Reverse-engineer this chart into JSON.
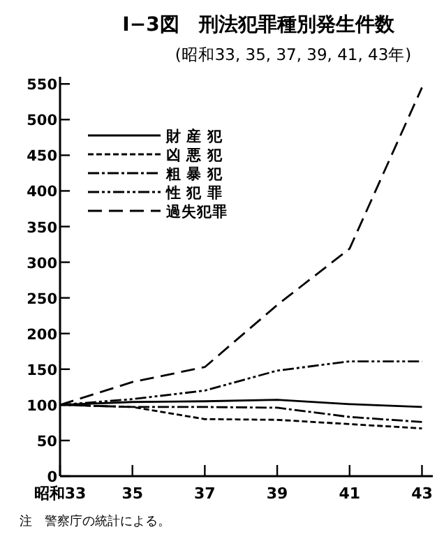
{
  "chart_data": {
    "type": "line",
    "title": "I−3図　刑法犯罪種別発生件数",
    "subtitle": "(昭和33, 35, 37, 39, 41, 43年)",
    "x": [
      33,
      35,
      37,
      39,
      41,
      43
    ],
    "xlim": [
      33,
      43.3
    ],
    "xticks": [
      {
        "value": 33,
        "label": "昭和33"
      },
      35,
      37,
      39,
      41,
      43
    ],
    "ylim": [
      0,
      560
    ],
    "yticks": [
      0,
      50,
      100,
      150,
      200,
      250,
      300,
      350,
      400,
      450,
      500,
      550
    ],
    "series": [
      {
        "name": "財 産 犯",
        "color": "#000000",
        "line_style": "solid",
        "values": [
          100,
          104,
          105,
          107,
          101,
          97
        ]
      },
      {
        "name": "凶 悪 犯",
        "color": "#000000",
        "line_style": "dashed",
        "values": [
          100,
          97,
          80,
          79,
          73,
          67
        ]
      },
      {
        "name": "粗 暴 犯",
        "color": "#000000",
        "line_style": "dashdot",
        "values": [
          100,
          97,
          97,
          96,
          83,
          76
        ]
      },
      {
        "name": "性 犯 罪",
        "color": "#000000",
        "line_style": "dashdotdot",
        "values": [
          100,
          108,
          120,
          148,
          161,
          161
        ]
      },
      {
        "name": "過失犯罪",
        "color": "#000000",
        "line_style": "longdash",
        "values": [
          100,
          132,
          153,
          240,
          319,
          545
        ]
      }
    ],
    "grid": false,
    "legend": "top left",
    "annotations": [
      "注　警察庁の統計による。"
    ]
  }
}
